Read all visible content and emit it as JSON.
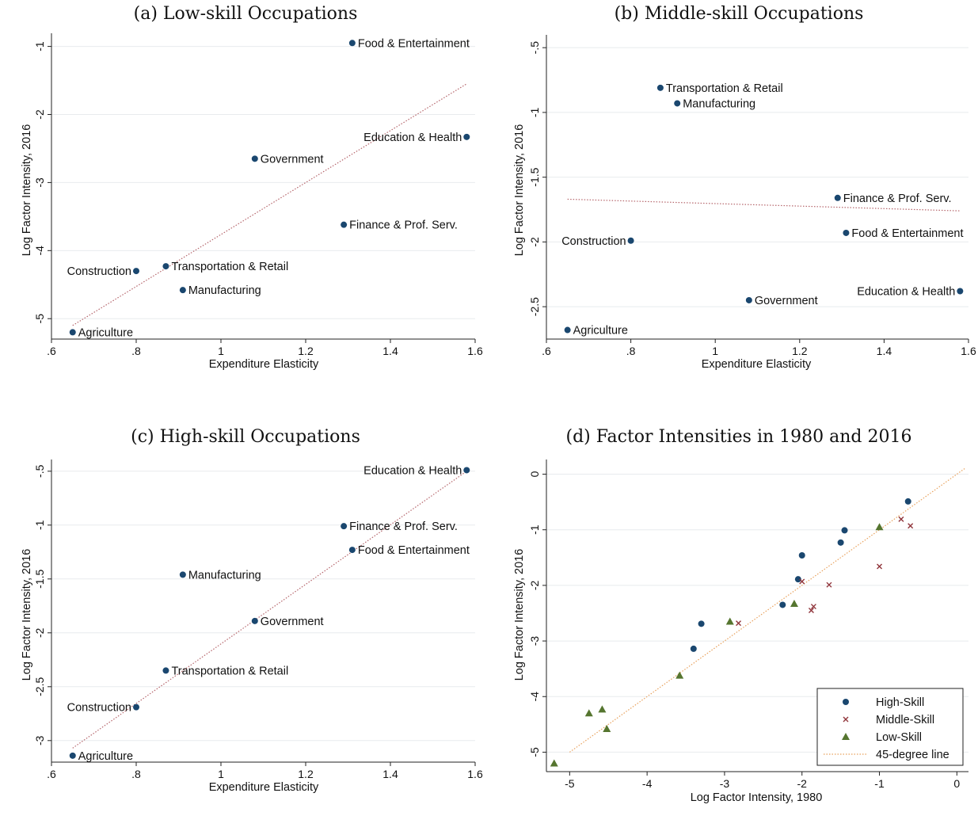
{
  "colors": {
    "high": "#1a476f",
    "middle": "#90353b",
    "low": "#55752f",
    "fit_line": "#b5656b",
    "line45": "#e8a15c",
    "grid": "#e8ebee"
  },
  "chart_data": [
    {
      "type": "scatter",
      "title": "(a) Low-skill Occupations",
      "xlabel": "Expenditure Elasticity",
      "ylabel": "Log Factor Intensity, 2016",
      "xlim": [
        0.6,
        1.6
      ],
      "ylim": [
        -5.3,
        -0.9
      ],
      "xticks": [
        0.6,
        0.8,
        1.0,
        1.2,
        1.4,
        1.6
      ],
      "xtick_labels": [
        ".6",
        ".8",
        "1",
        "1.2",
        "1.4",
        "1.6"
      ],
      "yticks": [
        -1,
        -2,
        -3,
        -4,
        -5
      ],
      "ytick_labels": [
        "-1",
        "-2",
        "-3",
        "-4",
        "-5"
      ],
      "grid": true,
      "fit_line": {
        "x": [
          0.65,
          1.58
        ],
        "y": [
          -5.1,
          -1.55
        ]
      },
      "points": [
        {
          "label": "Food & Entertainment",
          "x": 1.31,
          "y": -0.95,
          "side": "right"
        },
        {
          "label": "Education & Health",
          "x": 1.58,
          "y": -2.33,
          "side": "left"
        },
        {
          "label": "Government",
          "x": 1.08,
          "y": -2.65,
          "side": "right"
        },
        {
          "label": "Finance & Prof. Serv.",
          "x": 1.29,
          "y": -3.62,
          "side": "right"
        },
        {
          "label": "Transportation & Retail",
          "x": 0.87,
          "y": -4.23,
          "side": "right"
        },
        {
          "label": "Construction",
          "x": 0.8,
          "y": -4.3,
          "side": "left"
        },
        {
          "label": "Manufacturing",
          "x": 0.91,
          "y": -4.58,
          "side": "right"
        },
        {
          "label": "Agriculture",
          "x": 0.65,
          "y": -5.2,
          "side": "right"
        }
      ]
    },
    {
      "type": "scatter",
      "title": "(b) Middle-skill Occupations",
      "xlabel": "Expenditure Elasticity",
      "ylabel": "Log Factor Intensity, 2016",
      "xlim": [
        0.6,
        1.6
      ],
      "ylim": [
        -2.75,
        -0.45
      ],
      "xticks": [
        0.6,
        0.8,
        1.0,
        1.2,
        1.4,
        1.6
      ],
      "xtick_labels": [
        ".6",
        ".8",
        "1",
        "1.2",
        "1.4",
        "1.6"
      ],
      "yticks": [
        -0.5,
        -1,
        -1.5,
        -2,
        -2.5
      ],
      "ytick_labels": [
        "-.5",
        "-1",
        "-1.5",
        "-2",
        "-2.5"
      ],
      "grid": true,
      "fit_line": {
        "x": [
          0.65,
          1.58
        ],
        "y": [
          -1.67,
          -1.76
        ]
      },
      "points": [
        {
          "label": "Transportation & Retail",
          "x": 0.87,
          "y": -0.81,
          "side": "right"
        },
        {
          "label": "Manufacturing",
          "x": 0.91,
          "y": -0.93,
          "side": "right"
        },
        {
          "label": "Finance & Prof. Serv.",
          "x": 1.29,
          "y": -1.66,
          "side": "right"
        },
        {
          "label": "Food & Entertainment",
          "x": 1.31,
          "y": -1.93,
          "side": "right"
        },
        {
          "label": "Construction",
          "x": 0.8,
          "y": -1.99,
          "side": "left"
        },
        {
          "label": "Education & Health",
          "x": 1.58,
          "y": -2.38,
          "side": "left"
        },
        {
          "label": "Government",
          "x": 1.08,
          "y": -2.45,
          "side": "right"
        },
        {
          "label": "Agriculture",
          "x": 0.65,
          "y": -2.68,
          "side": "right"
        }
      ]
    },
    {
      "type": "scatter",
      "title": "(c) High-skill Occupations",
      "xlabel": "Expenditure Elasticity",
      "ylabel": "Log Factor Intensity, 2016",
      "xlim": [
        0.6,
        1.6
      ],
      "ylim": [
        -3.2,
        -0.45
      ],
      "xticks": [
        0.6,
        0.8,
        1.0,
        1.2,
        1.4,
        1.6
      ],
      "xtick_labels": [
        ".6",
        ".8",
        "1",
        "1.2",
        "1.4",
        "1.6"
      ],
      "yticks": [
        -0.5,
        -1,
        -1.5,
        -2,
        -2.5,
        -3
      ],
      "ytick_labels": [
        "-.5",
        "-1",
        "-1.5",
        "-2",
        "-2.5",
        "-3"
      ],
      "grid": true,
      "fit_line": {
        "x": [
          0.65,
          1.58
        ],
        "y": [
          -3.07,
          -0.5
        ]
      },
      "points": [
        {
          "label": "Education & Health",
          "x": 1.58,
          "y": -0.49,
          "side": "left"
        },
        {
          "label": "Finance & Prof. Serv.",
          "x": 1.29,
          "y": -1.01,
          "side": "right"
        },
        {
          "label": "Food & Entertainment",
          "x": 1.31,
          "y": -1.23,
          "side": "right"
        },
        {
          "label": "Manufacturing",
          "x": 0.91,
          "y": -1.46,
          "side": "right"
        },
        {
          "label": "Government",
          "x": 1.08,
          "y": -1.89,
          "side": "right"
        },
        {
          "label": "Transportation & Retail",
          "x": 0.87,
          "y": -2.35,
          "side": "right"
        },
        {
          "label": "Construction",
          "x": 0.8,
          "y": -2.69,
          "side": "left"
        },
        {
          "label": "Agriculture",
          "x": 0.65,
          "y": -3.14,
          "side": "right"
        }
      ]
    },
    {
      "type": "scatter",
      "title": "(d) Factor Intensities in 1980 and 2016",
      "xlabel": "Log Factor Intensity, 1980",
      "ylabel": "Log Factor Intensity, 2016",
      "xlim": [
        -5.3,
        0.15
      ],
      "ylim": [
        -5.35,
        0.15
      ],
      "xticks": [
        -5,
        -4,
        -3,
        -2,
        -1,
        0
      ],
      "xtick_labels": [
        "-5",
        "-4",
        "-3",
        "-2",
        "-1",
        "0"
      ],
      "yticks": [
        0,
        -1,
        -2,
        -3,
        -4,
        -5
      ],
      "ytick_labels": [
        "0",
        "-1",
        "-2",
        "-3",
        "-4",
        "-5"
      ],
      "grid": true,
      "legend_position": "bottom-right",
      "line45": {
        "name": "45-degree line",
        "x": [
          -5.0,
          0.1
        ],
        "y": [
          -5.0,
          0.1
        ]
      },
      "series": [
        {
          "name": "High-Skill",
          "marker": "circle",
          "points": [
            [
              -0.63,
              -0.49
            ],
            [
              -1.45,
              -1.01
            ],
            [
              -1.5,
              -1.23
            ],
            [
              -2.0,
              -1.46
            ],
            [
              -2.05,
              -1.89
            ],
            [
              -2.25,
              -2.35
            ],
            [
              -3.3,
              -2.69
            ],
            [
              -3.4,
              -3.14
            ]
          ]
        },
        {
          "name": "Middle-Skill",
          "marker": "x",
          "points": [
            [
              -0.72,
              -0.81
            ],
            [
              -0.6,
              -0.93
            ],
            [
              -1.0,
              -1.66
            ],
            [
              -1.65,
              -1.99
            ],
            [
              -1.85,
              -2.38
            ],
            [
              -1.88,
              -2.45
            ],
            [
              -2.0,
              -1.93
            ],
            [
              -2.82,
              -2.68
            ]
          ]
        },
        {
          "name": "Low-Skill",
          "marker": "triangle",
          "points": [
            [
              -1.0,
              -0.95
            ],
            [
              -2.93,
              -2.65
            ],
            [
              -2.1,
              -2.33
            ],
            [
              -3.58,
              -3.62
            ],
            [
              -4.58,
              -4.23
            ],
            [
              -4.75,
              -4.3
            ],
            [
              -4.52,
              -4.58
            ],
            [
              -5.2,
              -5.2
            ]
          ]
        }
      ]
    }
  ]
}
